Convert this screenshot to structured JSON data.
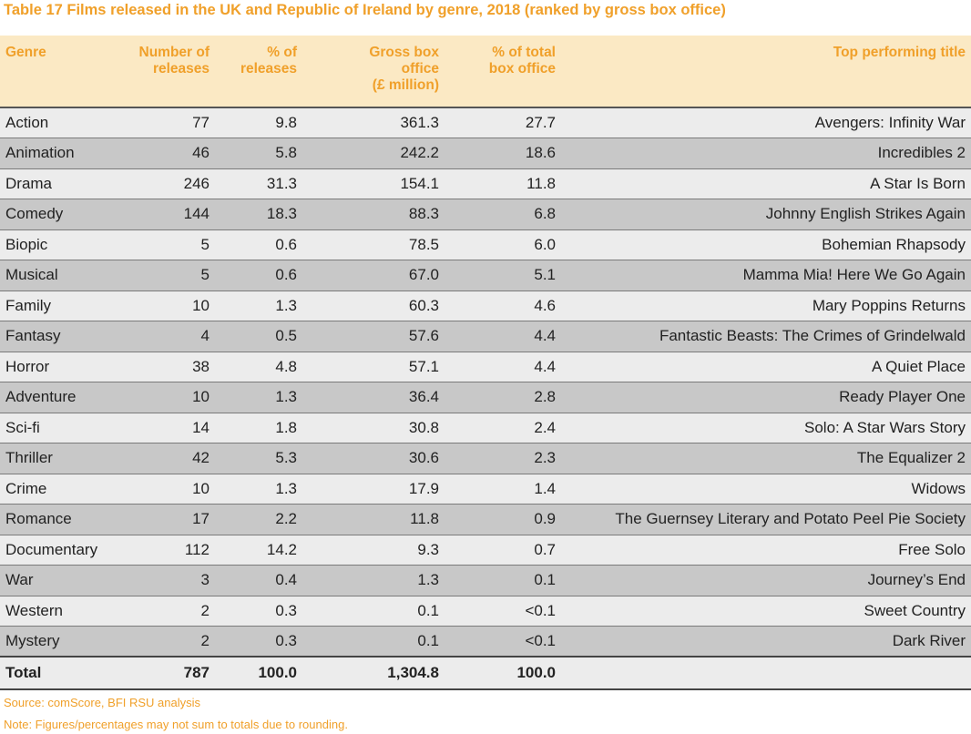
{
  "title": "Table 17 Films released in the UK and Republic of Ireland by genre, 2018 (ranked by gross box office)",
  "headers": {
    "genre": "Genre",
    "releases_1": "Number of",
    "releases_2": "releases",
    "pct_releases_1": "% of",
    "pct_releases_2": "releases",
    "gross_1": "Gross box",
    "gross_2": "office",
    "gross_3": "(£ million)",
    "pct_box_1": "% of total",
    "pct_box_2": "box office",
    "top_title": "Top performing title"
  },
  "rows": [
    {
      "genre": "Action",
      "releases": "77",
      "pct_releases": "9.8",
      "gross": "361.3",
      "pct_box": "27.7",
      "top": "Avengers: Infinity War"
    },
    {
      "genre": "Animation",
      "releases": "46",
      "pct_releases": "5.8",
      "gross": "242.2",
      "pct_box": "18.6",
      "top": "Incredibles 2"
    },
    {
      "genre": "Drama",
      "releases": "246",
      "pct_releases": "31.3",
      "gross": "154.1",
      "pct_box": "11.8",
      "top": "A Star Is Born"
    },
    {
      "genre": "Comedy",
      "releases": "144",
      "pct_releases": "18.3",
      "gross": "88.3",
      "pct_box": "6.8",
      "top": "Johnny English Strikes Again"
    },
    {
      "genre": "Biopic",
      "releases": "5",
      "pct_releases": "0.6",
      "gross": "78.5",
      "pct_box": "6.0",
      "top": "Bohemian Rhapsody"
    },
    {
      "genre": "Musical",
      "releases": "5",
      "pct_releases": "0.6",
      "gross": "67.0",
      "pct_box": "5.1",
      "top": "Mamma Mia! Here We Go Again"
    },
    {
      "genre": "Family",
      "releases": "10",
      "pct_releases": "1.3",
      "gross": "60.3",
      "pct_box": "4.6",
      "top": "Mary Poppins Returns"
    },
    {
      "genre": "Fantasy",
      "releases": "4",
      "pct_releases": "0.5",
      "gross": "57.6",
      "pct_box": "4.4",
      "top": "Fantastic Beasts: The Crimes of Grindelwald"
    },
    {
      "genre": "Horror",
      "releases": "38",
      "pct_releases": "4.8",
      "gross": "57.1",
      "pct_box": "4.4",
      "top": "A Quiet Place"
    },
    {
      "genre": "Adventure",
      "releases": "10",
      "pct_releases": "1.3",
      "gross": "36.4",
      "pct_box": "2.8",
      "top": "Ready Player One"
    },
    {
      "genre": "Sci-fi",
      "releases": "14",
      "pct_releases": "1.8",
      "gross": "30.8",
      "pct_box": "2.4",
      "top": "Solo: A Star Wars Story"
    },
    {
      "genre": "Thriller",
      "releases": "42",
      "pct_releases": "5.3",
      "gross": "30.6",
      "pct_box": "2.3",
      "top": "The Equalizer 2"
    },
    {
      "genre": "Crime",
      "releases": "10",
      "pct_releases": "1.3",
      "gross": "17.9",
      "pct_box": "1.4",
      "top": "Widows"
    },
    {
      "genre": "Romance",
      "releases": "17",
      "pct_releases": "2.2",
      "gross": "11.8",
      "pct_box": "0.9",
      "top": "The Guernsey Literary and Potato Peel Pie Society"
    },
    {
      "genre": "Documentary",
      "releases": "112",
      "pct_releases": "14.2",
      "gross": "9.3",
      "pct_box": "0.7",
      "top": "Free Solo"
    },
    {
      "genre": "War",
      "releases": "3",
      "pct_releases": "0.4",
      "gross": "1.3",
      "pct_box": "0.1",
      "top": "Journey’s End"
    },
    {
      "genre": "Western",
      "releases": "2",
      "pct_releases": "0.3",
      "gross": "0.1",
      "pct_box": "<0.1",
      "top": "Sweet Country"
    },
    {
      "genre": "Mystery",
      "releases": "2",
      "pct_releases": "0.3",
      "gross": "0.1",
      "pct_box": "<0.1",
      "top": "Dark River"
    }
  ],
  "total": {
    "label": "Total",
    "releases": "787",
    "pct_releases": "100.0",
    "gross": "1,304.8",
    "pct_box": "100.0"
  },
  "source": "Source: comScore, BFI RSU analysis",
  "note": "Note: Figures/percentages may not sum to totals due to rounding.",
  "colors": {
    "accent": "#f0a02a",
    "header_bg": "#fbe9c4",
    "row_light": "#ececec",
    "row_dark": "#c8c8c8"
  }
}
